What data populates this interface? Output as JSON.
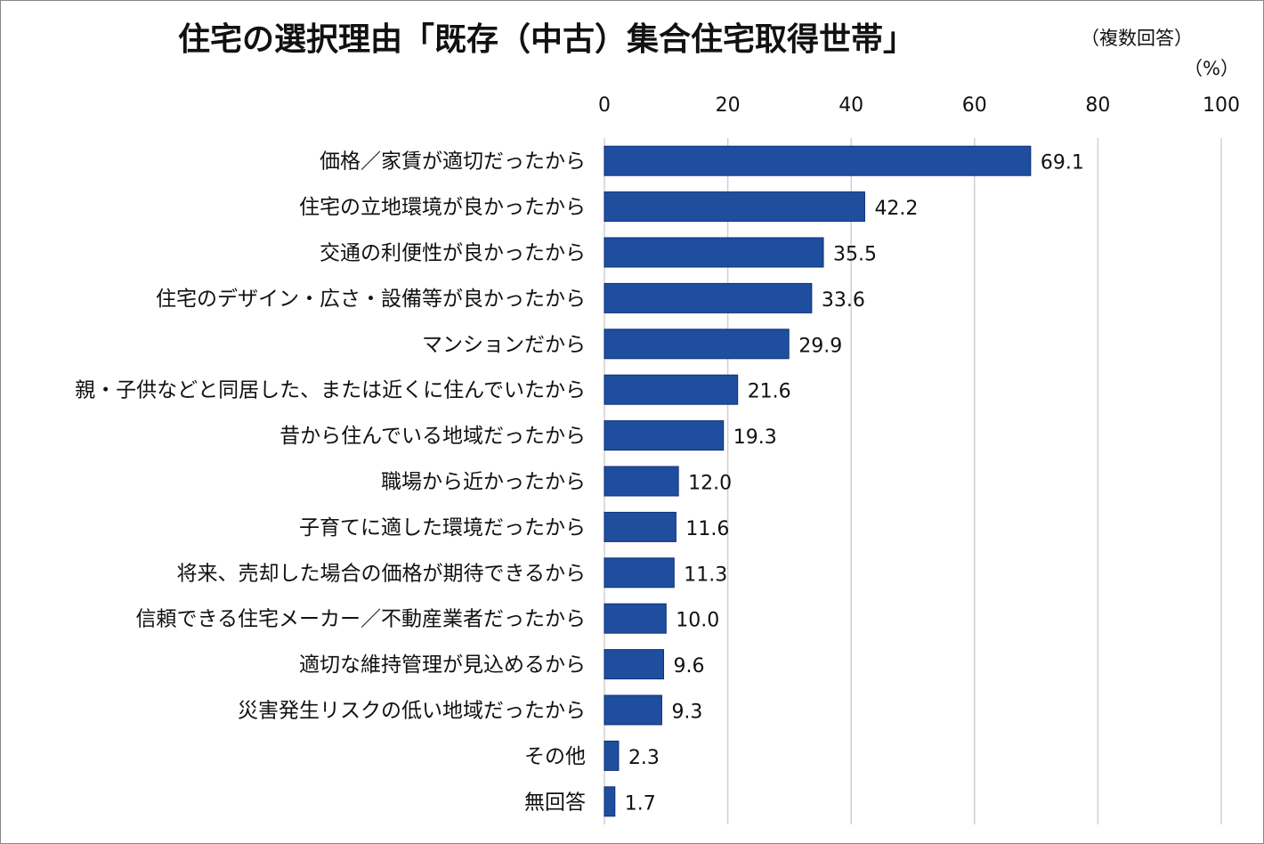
{
  "chart_data": {
    "type": "bar",
    "orientation": "horizontal",
    "title": "住宅の選択理由「既存（中古）集合住宅取得世帯」",
    "subtitle": "（複数回答）",
    "unit_label": "（%）",
    "xlim": [
      0,
      100
    ],
    "xticks": [
      0,
      20,
      40,
      60,
      80,
      100
    ],
    "grid": true,
    "bar_color": "#1f4e9e",
    "categories": [
      "価格／家賃が適切だったから",
      "住宅の立地環境が良かったから",
      "交通の利便性が良かったから",
      "住宅のデザイン・広さ・設備等が良かったから",
      "マンションだから",
      "親・子供などと同居した、または近くに住んでいたから",
      "昔から住んでいる地域だったから",
      "職場から近かったから",
      "子育てに適した環境だったから",
      "将来、売却した場合の価格が期待できるから",
      "信頼できる住宅メーカー／不動産業者だったから",
      "適切な維持管理が見込めるから",
      "災害発生リスクの低い地域だったから",
      "その他",
      "無回答"
    ],
    "values": [
      69.1,
      42.2,
      35.5,
      33.6,
      29.9,
      21.6,
      19.3,
      12.0,
      11.6,
      11.3,
      10.0,
      9.6,
      9.3,
      2.3,
      1.7
    ],
    "value_labels": [
      "69.1",
      "42.2",
      "35.5",
      "33.6",
      "29.9",
      "21.6",
      "19.3",
      "12.0",
      "11.6",
      "11.3",
      "10.0",
      "9.6",
      "9.3",
      "2.3",
      "1.7"
    ]
  }
}
